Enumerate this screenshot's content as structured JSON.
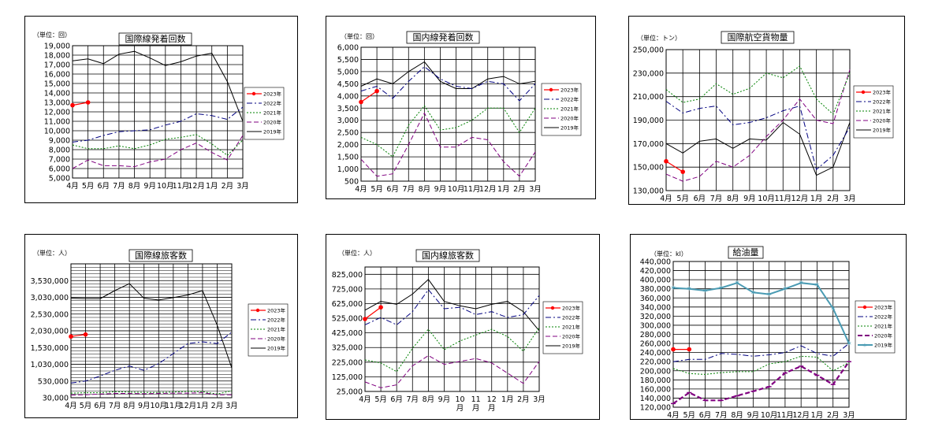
{
  "months": [
    "4月",
    "5月",
    "6月",
    "7月",
    "8月",
    "9月",
    "10月",
    "11月",
    "12月",
    "1月",
    "2月",
    "3月"
  ],
  "series_names": [
    "2023年",
    "2022年",
    "2021年",
    "2020年",
    "2019年"
  ],
  "colors": {
    "y2023": "#ff0000",
    "y2022": "#000080",
    "y2021": "#008000",
    "y2020": "#800080",
    "y2019": "#000000",
    "teal": "#4a9bb3"
  },
  "chart_data": [
    {
      "type": "line",
      "title": "国際線発着回数",
      "unit": "（単位：回）",
      "ylim": [
        5000,
        19000
      ],
      "yticks": [
        5000,
        6000,
        7000,
        8000,
        9000,
        10000,
        11000,
        12000,
        13000,
        14000,
        15000,
        16000,
        17000,
        18000,
        19000
      ],
      "ytick_labels": [
        "5,000",
        "6,000",
        "7,000",
        "8,000",
        "9,000",
        "10,000",
        "11,000",
        "12,000",
        "13,000",
        "14,000",
        "15,000",
        "16,000",
        "17,000",
        "18,000",
        "19,000"
      ],
      "series": [
        {
          "name": "2023年",
          "values": [
            12700,
            13000,
            null,
            null,
            null,
            null,
            null,
            null,
            null,
            null,
            null,
            null
          ]
        },
        {
          "name": "2022年",
          "values": [
            8800,
            9000,
            9500,
            9900,
            10000,
            10100,
            10600,
            11000,
            11800,
            11600,
            11200,
            12500
          ]
        },
        {
          "name": "2021年",
          "values": [
            8500,
            8100,
            8100,
            8400,
            8100,
            8500,
            9100,
            9300,
            9600,
            8600,
            7400,
            9000
          ]
        },
        {
          "name": "2020年",
          "values": [
            6000,
            6900,
            6300,
            6300,
            6200,
            6700,
            7000,
            8000,
            8700,
            7700,
            6900,
            9500
          ]
        },
        {
          "name": "2019年",
          "values": [
            17400,
            17600,
            17100,
            18100,
            18400,
            17700,
            16900,
            17300,
            17900,
            18200,
            15200,
            11000
          ]
        }
      ]
    },
    {
      "type": "line",
      "title": "国内線発着回数",
      "unit": "（単位：回）",
      "ylim": [
        500,
        6000
      ],
      "yticks": [
        500,
        1000,
        1500,
        2000,
        2500,
        3000,
        3500,
        4000,
        4500,
        5000,
        5500,
        6000
      ],
      "ytick_labels": [
        "500",
        "1,000",
        "1,500",
        "2,000",
        "2,500",
        "3,000",
        "3,500",
        "4,000",
        "4,500",
        "5,000",
        "5,500",
        "6,000"
      ],
      "series": [
        {
          "name": "2023年",
          "values": [
            3750,
            4200,
            null,
            null,
            null,
            null,
            null,
            null,
            null,
            null,
            null,
            null
          ]
        },
        {
          "name": "2022年",
          "values": [
            4200,
            4400,
            3900,
            4600,
            5200,
            4700,
            4400,
            4300,
            4600,
            4500,
            3800,
            4500
          ]
        },
        {
          "name": "2021年",
          "values": [
            2300,
            2000,
            1500,
            2800,
            3600,
            2600,
            2700,
            3000,
            3500,
            3500,
            2500,
            3500
          ]
        },
        {
          "name": "2020年",
          "values": [
            1400,
            700,
            800,
            2000,
            3300,
            1900,
            1900,
            2300,
            2200,
            1300,
            700,
            1700
          ]
        },
        {
          "name": "2019年",
          "values": [
            4400,
            4700,
            4500,
            5000,
            5400,
            4600,
            4300,
            4300,
            4700,
            4800,
            4500,
            4600
          ]
        }
      ]
    },
    {
      "type": "line",
      "title": "国際航空貨物量",
      "unit": "（単位：トン）",
      "ylim": [
        130000,
        250000
      ],
      "yticks": [
        130000,
        150000,
        170000,
        190000,
        210000,
        230000,
        250000
      ],
      "ytick_labels": [
        "130,000",
        "150,000",
        "170,000",
        "190,000",
        "210,000",
        "230,000",
        "250,000"
      ],
      "series": [
        {
          "name": "2023年",
          "values": [
            155000,
            146000,
            null,
            null,
            null,
            null,
            null,
            null,
            null,
            null,
            null,
            null
          ]
        },
        {
          "name": "2022年",
          "values": [
            206000,
            196000,
            200000,
            202000,
            186000,
            188000,
            192000,
            198000,
            202000,
            148000,
            160000,
            184000
          ]
        },
        {
          "name": "2021年",
          "values": [
            216000,
            205000,
            208000,
            221000,
            212000,
            217000,
            230000,
            226000,
            236000,
            208000,
            195000,
            230000
          ]
        },
        {
          "name": "2020年",
          "values": [
            144000,
            138000,
            142000,
            155000,
            150000,
            160000,
            176000,
            190000,
            208000,
            190000,
            187000,
            233000
          ]
        },
        {
          "name": "2019年",
          "values": [
            170000,
            162000,
            172000,
            174000,
            166000,
            174000,
            173000,
            188000,
            178000,
            143000,
            150000,
            188000
          ]
        }
      ]
    },
    {
      "type": "line",
      "title": "国際線旅客数",
      "unit": "（単位：人）",
      "ylim": [
        30000,
        4030000
      ],
      "yticks": [
        30000,
        530000,
        1030000,
        1530000,
        2030000,
        2530000,
        3030000,
        3530000
      ],
      "ytick_labels": [
        "30,000",
        "530,000",
        "1,030,000",
        "1,530,000",
        "2,030,000",
        "2,530,000",
        "3,030,000",
        "3,530,000"
      ],
      "series": [
        {
          "name": "2023年",
          "values": [
            1860000,
            1920000,
            null,
            null,
            null,
            null,
            null,
            null,
            null,
            null,
            null,
            null
          ]
        },
        {
          "name": "2022年",
          "values": [
            470000,
            530000,
            680000,
            850000,
            980000,
            850000,
            1050000,
            1350000,
            1650000,
            1700000,
            1650000,
            1990000
          ]
        },
        {
          "name": "2021年",
          "values": [
            170000,
            180000,
            180000,
            210000,
            200000,
            190000,
            190000,
            200000,
            220000,
            210000,
            140000,
            240000
          ]
        },
        {
          "name": "2020年",
          "values": [
            110000,
            120000,
            140000,
            160000,
            160000,
            150000,
            160000,
            170000,
            170000,
            180000,
            120000,
            120000
          ]
        },
        {
          "name": "2019年",
          "values": [
            3000000,
            2990000,
            2990000,
            3230000,
            3440000,
            3000000,
            2950000,
            3020000,
            3100000,
            3230000,
            2200000,
            920000
          ]
        }
      ]
    },
    {
      "type": "line",
      "title": "国内線旅客数",
      "unit": "（単位：人）",
      "ylim": [
        25000,
        875000
      ],
      "yticks": [
        25000,
        125000,
        225000,
        325000,
        425000,
        525000,
        625000,
        725000,
        825000
      ],
      "ytick_labels": [
        "25,000",
        "125,000",
        "225,000",
        "325,000",
        "425,000",
        "525,000",
        "625,000",
        "725,000",
        "825,000"
      ],
      "x_labels": [
        "4月",
        "5月",
        "6月",
        "7月",
        "8月",
        "9月",
        "10\n月",
        "11\n月",
        "12\n月",
        "1月",
        "2月",
        "3月"
      ],
      "series": [
        {
          "name": "2023年",
          "values": [
            520000,
            600000,
            null,
            null,
            null,
            null,
            null,
            null,
            null,
            null,
            null,
            null
          ]
        },
        {
          "name": "2022年",
          "values": [
            480000,
            530000,
            480000,
            570000,
            720000,
            590000,
            600000,
            550000,
            570000,
            530000,
            550000,
            680000
          ]
        },
        {
          "name": "2021年",
          "values": [
            240000,
            220000,
            160000,
            320000,
            450000,
            310000,
            370000,
            410000,
            450000,
            400000,
            300000,
            460000
          ]
        },
        {
          "name": "2020年",
          "values": [
            90000,
            50000,
            70000,
            200000,
            270000,
            210000,
            230000,
            250000,
            220000,
            150000,
            80000,
            230000
          ]
        },
        {
          "name": "2019年",
          "values": [
            580000,
            640000,
            620000,
            690000,
            790000,
            640000,
            610000,
            590000,
            620000,
            640000,
            570000,
            440000
          ]
        }
      ]
    },
    {
      "type": "line",
      "title": "給油量",
      "unit": "（単位：kl）",
      "ylim": [
        120000,
        440000
      ],
      "yticks": [
        120000,
        140000,
        160000,
        180000,
        200000,
        220000,
        240000,
        260000,
        280000,
        300000,
        320000,
        340000,
        360000,
        380000,
        400000,
        420000,
        440000
      ],
      "ytick_labels": [
        "120,000",
        "140,000",
        "160,000",
        "180,000",
        "200,000",
        "220,000",
        "240,000",
        "260,000",
        "280,000",
        "300,000",
        "320,000",
        "340,000",
        "360,000",
        "380,000",
        "400,000",
        "420,000",
        "440,000"
      ],
      "series": [
        {
          "name": "2023年",
          "values": [
            247000,
            247000,
            null,
            null,
            null,
            null,
            null,
            null,
            null,
            null,
            null,
            null
          ]
        },
        {
          "name": "2022年",
          "values": [
            220000,
            225000,
            225000,
            238000,
            236000,
            232000,
            235000,
            240000,
            255000,
            238000,
            232000,
            260000
          ]
        },
        {
          "name": "2021年",
          "values": [
            205000,
            194000,
            192000,
            196000,
            198000,
            198000,
            215000,
            220000,
            232000,
            230000,
            200000,
            218000
          ]
        },
        {
          "name": "2020年",
          "values": [
            128000,
            152000,
            135000,
            135000,
            145000,
            155000,
            165000,
            195000,
            210000,
            190000,
            170000,
            220000
          ]
        },
        {
          "name": "2019年",
          "values": [
            382000,
            380000,
            376000,
            382000,
            393000,
            372000,
            368000,
            380000,
            393000,
            389000,
            337000,
            260000
          ]
        }
      ]
    }
  ]
}
